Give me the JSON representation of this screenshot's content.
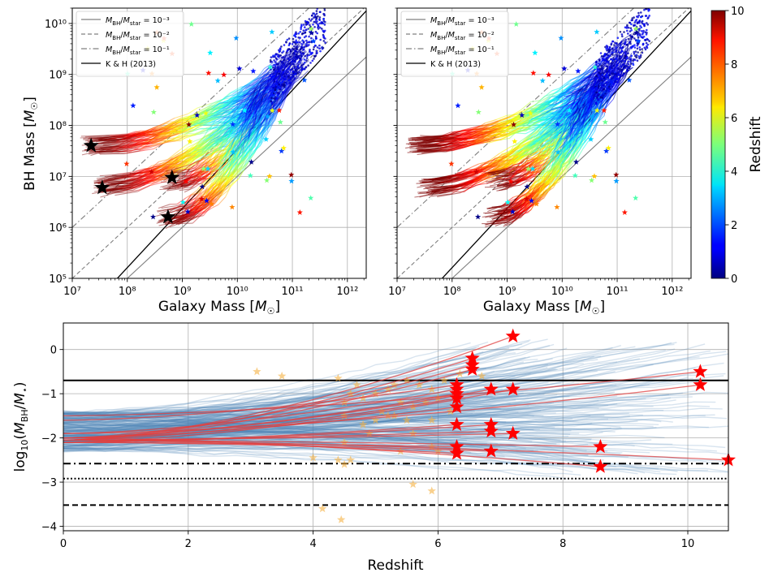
{
  "colors": {
    "ratio_line": "#808080",
    "kh_line": "#000000",
    "track_blue": "#4f86b8",
    "track_red": "#e04040",
    "star_red": "#ff0000",
    "star_obs": "#f5b041",
    "grid": "#b0b0b0"
  },
  "chart_data": [
    {
      "type": "scatter",
      "panel": "top-left",
      "xlabel": "Galaxy Mass [M☉]",
      "ylabel": "BH Mass [M☉]",
      "xscale": "log",
      "yscale": "log",
      "xlim": [
        10000000.0,
        2200000000000.0
      ],
      "ylim": [
        100000.0,
        20000000000.0
      ],
      "xticks": [
        {
          "v": 7,
          "t": "10⁷"
        },
        {
          "v": 8,
          "t": "10⁸"
        },
        {
          "v": 9,
          "t": "10⁹"
        },
        {
          "v": 10,
          "t": "10¹⁰"
        },
        {
          "v": 11,
          "t": "10¹¹"
        },
        {
          "v": 12,
          "t": "10¹²"
        }
      ],
      "yticks": [
        {
          "v": 5,
          "t": "10⁵"
        },
        {
          "v": 6,
          "t": "10⁶"
        },
        {
          "v": 7,
          "t": "10⁷"
        },
        {
          "v": 8,
          "t": "10⁸"
        },
        {
          "v": 9,
          "t": "10⁹"
        },
        {
          "v": 10,
          "t": "10¹⁰"
        }
      ],
      "grid": true,
      "legend_position": "top-left",
      "legend": [
        {
          "label": "M_BH/M_star = 10⁻³",
          "style": "solid",
          "color": "#808080"
        },
        {
          "label": "M_BH/M_star = 10⁻²",
          "style": "dashed",
          "color": "#808080"
        },
        {
          "label": "M_BH/M_star = 10⁻¹",
          "style": "dashdot",
          "color": "#808080"
        },
        {
          "label": "K & H (2013)",
          "style": "solid",
          "color": "#000000"
        }
      ],
      "start_stars": [
        {
          "x": 22000000.0,
          "y": 40000000.0
        },
        {
          "x": 35000000.0,
          "y": 6000000.0
        },
        {
          "x": 650000000.0,
          "y": 9500000.0
        },
        {
          "x": 550000000.0,
          "y": 1600000.0
        }
      ]
    },
    {
      "type": "scatter",
      "panel": "top-right",
      "xlabel": "Galaxy Mass [M☉]",
      "xscale": "log",
      "yscale": "log",
      "xlim": [
        10000000.0,
        2200000000000.0
      ],
      "ylim": [
        100000.0,
        20000000000.0
      ],
      "xticks": [
        {
          "v": 7,
          "t": "10⁷"
        },
        {
          "v": 8,
          "t": "10⁸"
        },
        {
          "v": 9,
          "t": "10⁹"
        },
        {
          "v": 10,
          "t": "10¹⁰"
        },
        {
          "v": 11,
          "t": "10¹¹"
        },
        {
          "v": 12,
          "t": "10¹²"
        }
      ],
      "grid": true,
      "legend_position": "top-left",
      "legend": [
        {
          "label": "M_BH/M_star = 10⁻³",
          "style": "solid",
          "color": "#808080"
        },
        {
          "label": "M_BH/M_star = 10⁻²",
          "style": "dashed",
          "color": "#808080"
        },
        {
          "label": "M_BH/M_star = 10⁻¹",
          "style": "dashdot",
          "color": "#808080"
        },
        {
          "label": "K & H (2013)",
          "style": "solid",
          "color": "#000000"
        }
      ],
      "colorbar": {
        "label": "Redshift",
        "range": [
          0,
          10
        ],
        "ticks": [
          0,
          2,
          4,
          6,
          8,
          10
        ],
        "colormap": "jet"
      }
    },
    {
      "type": "line",
      "panel": "bottom",
      "xlabel": "Redshift",
      "ylabel": "log₁₀(M_BH/M⋆)",
      "xlim": [
        0,
        10.65
      ],
      "ylim": [
        -4.1,
        0.6
      ],
      "xticks": [
        0,
        2,
        4,
        6,
        8,
        10
      ],
      "yticks": [
        0,
        -1,
        -2,
        -3,
        -4
      ],
      "grid": true,
      "hlines": [
        {
          "y": -0.7,
          "style": "solid"
        },
        {
          "y": -2.58,
          "style": "dashdot"
        },
        {
          "y": -2.92,
          "style": "dotted"
        },
        {
          "y": -3.52,
          "style": "dashed"
        }
      ],
      "red_tracks": [
        {
          "z0": 7.2,
          "y0": 0.3,
          "yend": -2.05
        },
        {
          "z0": 6.55,
          "y0": -0.2,
          "yend": -2.05
        },
        {
          "z0": 6.55,
          "y0": -0.35,
          "yend": -2.0
        },
        {
          "z0": 6.55,
          "y0": -0.45,
          "yend": -2.05
        },
        {
          "z0": 10.2,
          "y0": -0.5,
          "yend": -1.5
        },
        {
          "z0": 10.2,
          "y0": -0.8,
          "yend": -1.9
        },
        {
          "z0": 6.3,
          "y0": -0.8,
          "yend": -1.6
        },
        {
          "z0": 6.3,
          "y0": -0.9,
          "yend": -1.9
        },
        {
          "z0": 6.85,
          "y0": -0.9,
          "yend": -2.0
        },
        {
          "z0": 7.2,
          "y0": -0.9,
          "yend": -2.1
        },
        {
          "z0": 6.3,
          "y0": -1.0,
          "yend": -2.0
        },
        {
          "z0": 6.3,
          "y0": -1.1,
          "yend": -2.05
        },
        {
          "z0": 6.3,
          "y0": -1.3,
          "yend": -2.0
        },
        {
          "z0": 6.3,
          "y0": -1.7,
          "yend": -2.1
        },
        {
          "z0": 6.85,
          "y0": -1.7,
          "yend": -2.1
        },
        {
          "z0": 6.85,
          "y0": -1.85,
          "yend": -2.05
        },
        {
          "z0": 7.2,
          "y0": -1.9,
          "yend": -2.05
        },
        {
          "z0": 6.3,
          "y0": -2.2,
          "yend": -2.1
        },
        {
          "z0": 6.3,
          "y0": -2.35,
          "yend": -2.05
        },
        {
          "z0": 6.85,
          "y0": -2.3,
          "yend": -2.1
        },
        {
          "z0": 8.6,
          "y0": -2.2,
          "yend": -2.05
        },
        {
          "z0": 8.6,
          "y0": -2.65,
          "yend": -2.0
        },
        {
          "z0": 10.65,
          "y0": -2.5,
          "yend": -2.05
        }
      ],
      "observed_points": [
        {
          "z": 3.1,
          "y": -0.5
        },
        {
          "z": 3.5,
          "y": -0.6
        },
        {
          "z": 4.4,
          "y": -0.65
        },
        {
          "z": 4.7,
          "y": -0.8
        },
        {
          "z": 4.6,
          "y": -1.0
        },
        {
          "z": 4.5,
          "y": -1.2
        },
        {
          "z": 4.8,
          "y": -1.1
        },
        {
          "z": 5.0,
          "y": -1.0
        },
        {
          "z": 5.2,
          "y": -0.9
        },
        {
          "z": 5.3,
          "y": -0.8
        },
        {
          "z": 5.5,
          "y": -0.7
        },
        {
          "z": 5.7,
          "y": -0.8
        },
        {
          "z": 5.9,
          "y": -0.9
        },
        {
          "z": 6.1,
          "y": -0.7
        },
        {
          "z": 5.4,
          "y": -1.2
        },
        {
          "z": 5.6,
          "y": -1.3
        },
        {
          "z": 5.8,
          "y": -1.2
        },
        {
          "z": 6.0,
          "y": -1.1
        },
        {
          "z": 5.1,
          "y": -1.4
        },
        {
          "z": 5.3,
          "y": -1.5
        },
        {
          "z": 5.5,
          "y": -1.6
        },
        {
          "z": 5.0,
          "y": -1.6
        },
        {
          "z": 5.2,
          "y": -1.5
        },
        {
          "z": 4.5,
          "y": -1.5
        },
        {
          "z": 4.8,
          "y": -1.7
        },
        {
          "z": 5.9,
          "y": -1.6
        },
        {
          "z": 6.2,
          "y": -1.4
        },
        {
          "z": 4.9,
          "y": -1.9
        },
        {
          "z": 5.6,
          "y": -1.9
        },
        {
          "z": 4.5,
          "y": -2.1
        },
        {
          "z": 5.9,
          "y": -2.2
        },
        {
          "z": 6.0,
          "y": -2.3
        },
        {
          "z": 5.4,
          "y": -2.3
        },
        {
          "z": 4.0,
          "y": -2.45
        },
        {
          "z": 4.4,
          "y": -2.5
        },
        {
          "z": 4.6,
          "y": -2.5
        },
        {
          "z": 4.5,
          "y": -2.6
        },
        {
          "z": 5.6,
          "y": -3.05
        },
        {
          "z": 5.9,
          "y": -3.2
        },
        {
          "z": 4.15,
          "y": -3.6
        },
        {
          "z": 4.45,
          "y": -3.85
        },
        {
          "z": 6.35,
          "y": -0.55
        },
        {
          "z": 6.7,
          "y": -0.6
        }
      ]
    }
  ]
}
